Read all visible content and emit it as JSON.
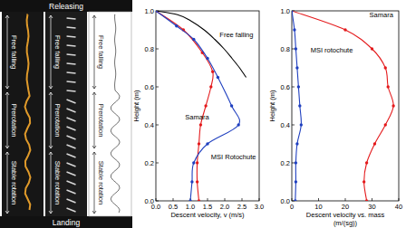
{
  "photo_panel": {
    "top_label": "Releasing",
    "bottom_label": "Landing",
    "columns": [
      {
        "phases": [
          "Free falling",
          "Prerotation",
          "Stable rotation"
        ]
      },
      {
        "phases": [
          "Free falling",
          "Prerotation",
          "Stable rotation"
        ]
      },
      {
        "phases": [
          "Free falling",
          "Prerotation",
          "Stable rotation"
        ]
      }
    ]
  },
  "chart_data": [
    {
      "type": "line",
      "x_label": [
        "Descent velocity, v (m/s)"
      ],
      "y_label": "Height (m)",
      "xlim": [
        0,
        3
      ],
      "ylim": [
        0,
        1
      ],
      "xticks": [
        {
          "value": 0,
          "label": "0.0"
        },
        {
          "value": 0.5,
          "label": "0.5"
        },
        {
          "value": 1,
          "label": "1.0"
        },
        {
          "value": 1.5,
          "label": "1.5"
        },
        {
          "value": 2,
          "label": "2.0"
        },
        {
          "value": 2.5,
          "label": "2.5"
        },
        {
          "value": 3,
          "label": "3.0"
        }
      ],
      "yticks": [
        {
          "value": 0,
          "label": "0.0"
        },
        {
          "value": 0.2,
          "label": "0.2"
        },
        {
          "value": 0.4,
          "label": "0.4"
        },
        {
          "value": 0.6,
          "label": "0.6"
        },
        {
          "value": 0.8,
          "label": "0.8"
        },
        {
          "value": 1,
          "label": "1.0"
        }
      ],
      "series": [
        {
          "name": "Free falling",
          "color": "#000000",
          "marker": "none",
          "line_style": "solid",
          "x": [
            0,
            0.63,
            0.99,
            1.4,
            1.71,
            1.98,
            2.21,
            2.43,
            2.62
          ],
          "values": [
            1,
            0.98,
            0.95,
            0.9,
            0.85,
            0.8,
            0.75,
            0.7,
            0.65
          ]
        },
        {
          "name": "Samara",
          "color": "#e41a1c",
          "marker": "circle",
          "line_style": "solid",
          "x": [
            0,
            0.8,
            1.35,
            1.65,
            1.6,
            1.45,
            1.3,
            1.25,
            1.2,
            1.2,
            1.25
          ],
          "values": [
            1,
            0.9,
            0.78,
            0.68,
            0.6,
            0.5,
            0.4,
            0.3,
            0.2,
            0.1,
            0
          ]
        },
        {
          "name": "MSI Rotochute",
          "color": "#1f3fbf",
          "marker": "circle",
          "line_style": "solid",
          "x": [
            0,
            0.6,
            1.1,
            1.5,
            1.8,
            2.2,
            2.4,
            1.5,
            1.1,
            1.05,
            1.0
          ],
          "values": [
            1,
            0.92,
            0.85,
            0.75,
            0.65,
            0.5,
            0.4,
            0.3,
            0.2,
            0.1,
            0
          ]
        }
      ]
    },
    {
      "type": "line",
      "x_label": [
        "Descent velocity vs. mass",
        "(m/(sg))"
      ],
      "y_label": "Height (m)",
      "xlim": [
        0,
        40
      ],
      "ylim": [
        0,
        1
      ],
      "xticks": [
        0,
        10,
        20,
        30,
        40
      ],
      "yticks": [
        {
          "value": 0,
          "label": "0.0"
        },
        {
          "value": 0.2,
          "label": "0.2"
        },
        {
          "value": 0.4,
          "label": "0.4"
        },
        {
          "value": 0.6,
          "label": "0.6"
        },
        {
          "value": 0.8,
          "label": "0.8"
        },
        {
          "value": 1,
          "label": "1.0"
        }
      ],
      "series": [
        {
          "name": "Samara",
          "color": "#e41a1c",
          "marker": "circle",
          "line_style": "solid",
          "x": [
            0,
            20,
            30,
            35,
            36,
            38,
            35,
            31,
            28,
            27,
            28
          ],
          "values": [
            1,
            0.9,
            0.8,
            0.7,
            0.6,
            0.5,
            0.4,
            0.3,
            0.2,
            0.1,
            0
          ]
        },
        {
          "name": "MSI rotochute",
          "color": "#1f3fbf",
          "marker": "circle",
          "line_style": "solid",
          "x": [
            0,
            1,
            1.5,
            2,
            2.5,
            3,
            3.5,
            2,
            1.5,
            1.5,
            1.3
          ],
          "values": [
            1,
            0.9,
            0.8,
            0.7,
            0.6,
            0.5,
            0.4,
            0.3,
            0.2,
            0.1,
            0
          ]
        }
      ]
    }
  ]
}
